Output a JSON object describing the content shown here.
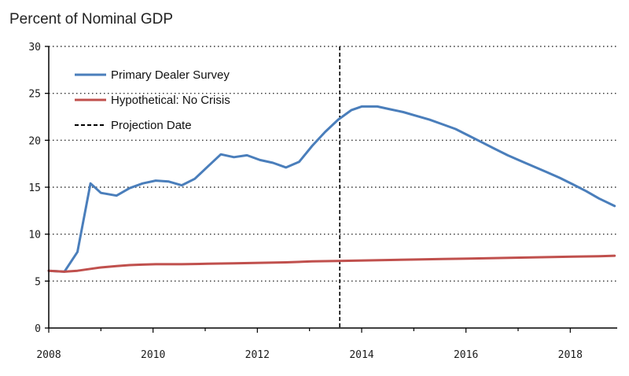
{
  "chart_data": {
    "type": "line",
    "ylabel": "Percent of Nominal GDP",
    "xlim": [
      2008,
      2018.9
    ],
    "ylim": [
      0,
      30
    ],
    "x_ticks": [
      2008,
      2010,
      2012,
      2014,
      2016,
      2018
    ],
    "x_tick_labels": [
      "2008",
      "2010",
      "2012",
      "2014",
      "2016",
      "2018"
    ],
    "y_ticks": [
      0,
      5,
      10,
      15,
      20,
      25,
      30
    ],
    "y_tick_labels": [
      "0",
      "5",
      "10",
      "15",
      "20",
      "25",
      "30"
    ],
    "grid": "horizontal-dotted",
    "legend_position": "top-left",
    "projection_date": 2013.58,
    "legend": [
      {
        "label": "Primary Dealer Survey",
        "color": "#4A7EBB",
        "style": "solid"
      },
      {
        "label": "Hypothetical: No Crisis",
        "color": "#C0504D",
        "style": "solid"
      },
      {
        "label": "Projection Date",
        "color": "#000000",
        "style": "dashed"
      }
    ],
    "series": [
      {
        "name": "Primary Dealer Survey",
        "color": "#4A7EBB",
        "x": [
          2008.0,
          2008.3,
          2008.55,
          2008.8,
          2009.0,
          2009.3,
          2009.55,
          2009.8,
          2010.05,
          2010.3,
          2010.55,
          2010.8,
          2011.05,
          2011.3,
          2011.55,
          2011.8,
          2012.05,
          2012.3,
          2012.55,
          2012.8,
          2013.05,
          2013.3,
          2013.55,
          2013.8,
          2014.0,
          2014.3,
          2014.55,
          2014.8,
          2015.05,
          2015.3,
          2015.55,
          2015.8,
          2016.05,
          2016.3,
          2016.55,
          2016.8,
          2017.05,
          2017.3,
          2017.55,
          2017.8,
          2018.05,
          2018.3,
          2018.55,
          2018.85
        ],
        "values": [
          6.1,
          6.0,
          8.1,
          15.4,
          14.4,
          14.1,
          14.9,
          15.4,
          15.7,
          15.6,
          15.2,
          15.9,
          17.2,
          18.5,
          18.2,
          18.4,
          17.9,
          17.6,
          17.1,
          17.7,
          19.4,
          20.9,
          22.2,
          23.2,
          23.6,
          23.6,
          23.3,
          23.0,
          22.6,
          22.2,
          21.7,
          21.2,
          20.5,
          19.8,
          19.1,
          18.4,
          17.8,
          17.2,
          16.6,
          16.0,
          15.3,
          14.6,
          13.8,
          13.0
        ]
      },
      {
        "name": "Hypothetical: No Crisis",
        "color": "#C0504D",
        "x": [
          2008.0,
          2008.3,
          2008.55,
          2008.8,
          2009.0,
          2009.3,
          2009.55,
          2009.8,
          2010.05,
          2010.55,
          2011.05,
          2011.55,
          2012.05,
          2012.55,
          2013.05,
          2013.55,
          2014.05,
          2014.55,
          2015.05,
          2015.55,
          2016.05,
          2016.55,
          2017.05,
          2017.55,
          2018.05,
          2018.55,
          2018.85
        ],
        "values": [
          6.1,
          6.0,
          6.1,
          6.3,
          6.45,
          6.6,
          6.7,
          6.75,
          6.8,
          6.8,
          6.85,
          6.9,
          6.95,
          7.0,
          7.1,
          7.15,
          7.2,
          7.25,
          7.3,
          7.35,
          7.4,
          7.45,
          7.5,
          7.55,
          7.6,
          7.65,
          7.7
        ]
      }
    ]
  }
}
